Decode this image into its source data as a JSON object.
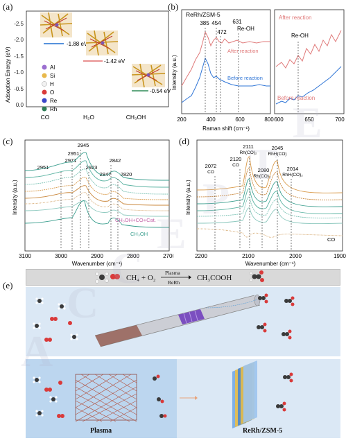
{
  "panels": {
    "a": "(a)",
    "b": "(b)",
    "c": "(c)",
    "d": "(d)",
    "e": "(e)"
  },
  "panel_a": {
    "ylabel": "Adsoption Energy (eV)",
    "yticks": [
      "-2.5",
      "-2.0",
      "-1.5",
      "-1.0",
      "-0.5",
      "0.0"
    ],
    "xticks": [
      "CO",
      "H₂O",
      "CH₃OH"
    ],
    "energies": [
      {
        "label": "-1.88 eV",
        "value": -1.88,
        "color": "#1f6fd1"
      },
      {
        "label": "-1.42 eV",
        "value": -1.42,
        "color": "#e06b6b"
      },
      {
        "label": "-0.54 eV",
        "value": -0.54,
        "color": "#2e8b57"
      }
    ],
    "legend": [
      {
        "name": "Al",
        "color": "#9b6fd0"
      },
      {
        "name": "Si",
        "color": "#e8b84a"
      },
      {
        "name": "H",
        "color": "#f2f2f2"
      },
      {
        "name": "O",
        "color": "#d93a3a"
      },
      {
        "name": "Re",
        "color": "#3a46c8"
      },
      {
        "name": "Rh",
        "color": "#2f7d57"
      }
    ]
  },
  "panel_b": {
    "title": "ReRh/ZSM-5",
    "peaks": [
      "385",
      "454",
      "472",
      "631"
    ],
    "reoh": "Re-OH",
    "after": "After reaction",
    "before": "Before reaction",
    "xlabel": "Raman shift (cm⁻¹)",
    "ylabel": "Intensity (a.u.)",
    "xticks": [
      "200",
      "400",
      "600",
      "800"
    ],
    "inset_xticks": [
      "600",
      "650",
      "700"
    ],
    "inset_after": "After reaction",
    "inset_before": "Before reaction",
    "inset_reoh": "Re-OH"
  },
  "panel_c": {
    "peaks": [
      "2951",
      "2971",
      "2945",
      "2923",
      "2847",
      "2842",
      "2820",
      "2951"
    ],
    "label_mix": "CH₃OH+CO+Cat.",
    "label_meoh": "CH₃OH",
    "xlabel": "Wavenumber (cm⁻¹)",
    "ylabel": "Intensity (a.u.)",
    "xticks": [
      "3100",
      "3000",
      "2900",
      "2800",
      "2700"
    ]
  },
  "panel_d": {
    "peaks": [
      {
        "w": "2111",
        "s": "Rh(CO)₂"
      },
      {
        "w": "2045",
        "s": "RhH(CO)"
      },
      {
        "w": "2120",
        "s": "CO"
      },
      {
        "w": "2072",
        "s": "CO"
      },
      {
        "w": "2080",
        "s": "Rh(CO)₂"
      },
      {
        "w": "2014",
        "s": "RhH(CO)₂"
      }
    ],
    "co_label": "CO",
    "xlabel": "Wavenumber (cm⁻¹)",
    "ylabel": "Intensity (a.u.)",
    "xticks": [
      "2200",
      "2100",
      "2000",
      "1900"
    ]
  },
  "panel_e": {
    "equation_left": "CH₄ + O₂",
    "arrow_top": "Plasma",
    "arrow_bottom": "ReRh",
    "equation_right": "CH₃COOH",
    "caption_left": "Plasma",
    "caption_right": "ReRh/ZSM-5"
  },
  "watermark": "ACCEPTED MANUSCRIPT"
}
